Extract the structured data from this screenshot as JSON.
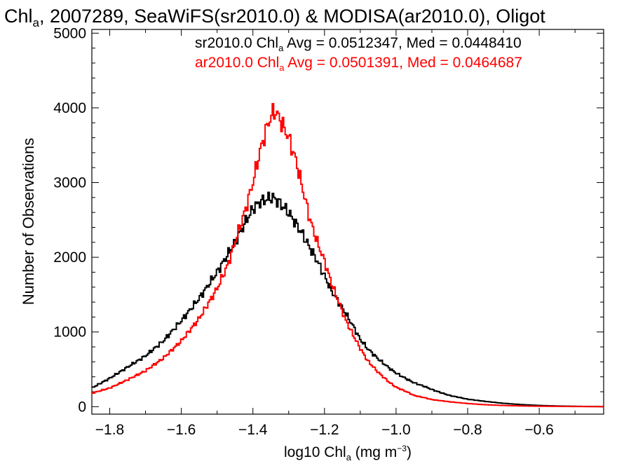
{
  "chart_data": {
    "type": "line",
    "title": {
      "prefix": "Chl",
      "sub": "a",
      "rest": ", 2007289, SeaWiFS(sr2010.0) & MODISA(ar2010.0), Oligot"
    },
    "xlabel": {
      "prefix": "log10 Chl",
      "sub": "a",
      "mid": " (mg m",
      "sup": "−3",
      "end": ")"
    },
    "ylabel": "Number of Observations",
    "xlim": [
      -1.85,
      -0.42
    ],
    "ylim": [
      -100,
      5050
    ],
    "x_ticks": [
      -1.8,
      -1.6,
      -1.4,
      -1.2,
      -1.0,
      -0.8,
      -0.6
    ],
    "x_tick_labels": [
      "−1.8",
      "−1.6",
      "−1.4",
      "−1.2",
      "−1.0",
      "−0.8",
      "−0.6"
    ],
    "y_ticks": [
      0,
      1000,
      2000,
      3000,
      4000,
      5000
    ],
    "y_tick_labels": [
      "0",
      "1000",
      "2000",
      "3000",
      "4000",
      "5000"
    ],
    "grid": false,
    "legend_position": "top-right",
    "series": [
      {
        "name": "sr2010.0",
        "color": "#000000",
        "legend": {
          "prefix": "sr2010.0 Chl",
          "sub": "a",
          "rest": " Avg = 0.0512347, Med = 0.0448410"
        },
        "x": [
          -1.85,
          -1.8,
          -1.75,
          -1.7,
          -1.65,
          -1.6,
          -1.55,
          -1.5,
          -1.45,
          -1.42,
          -1.4,
          -1.38,
          -1.36,
          -1.35,
          -1.34,
          -1.32,
          -1.3,
          -1.28,
          -1.26,
          -1.24,
          -1.22,
          -1.2,
          -1.18,
          -1.15,
          -1.12,
          -1.1,
          -1.08,
          -1.05,
          -1.02,
          -1.0,
          -0.97,
          -0.95,
          -0.92,
          -0.9,
          -0.87,
          -0.85,
          -0.82,
          -0.8,
          -0.75,
          -0.7,
          -0.65,
          -0.6,
          -0.55,
          -0.5,
          -0.45,
          -0.42
        ],
        "y": [
          250,
          380,
          530,
          680,
          880,
          1150,
          1450,
          1800,
          2200,
          2480,
          2650,
          2740,
          2780,
          2800,
          2790,
          2700,
          2600,
          2450,
          2300,
          2120,
          1950,
          1750,
          1550,
          1320,
          1080,
          900,
          780,
          640,
          520,
          450,
          370,
          320,
          270,
          230,
          180,
          150,
          120,
          100,
          70,
          45,
          28,
          16,
          9,
          5,
          2,
          1
        ]
      },
      {
        "name": "ar2010.0",
        "color": "#ff0000",
        "legend": {
          "prefix": "ar2010.0 Chl",
          "sub": "a",
          "rest": " Avg = 0.0501391, Med = 0.0464687"
        },
        "x": [
          -1.85,
          -1.8,
          -1.75,
          -1.7,
          -1.65,
          -1.6,
          -1.55,
          -1.5,
          -1.47,
          -1.45,
          -1.42,
          -1.4,
          -1.38,
          -1.36,
          -1.35,
          -1.34,
          -1.33,
          -1.32,
          -1.3,
          -1.28,
          -1.26,
          -1.24,
          -1.22,
          -1.2,
          -1.18,
          -1.16,
          -1.14,
          -1.12,
          -1.1,
          -1.08,
          -1.05,
          -1.02,
          -1.0,
          -0.97,
          -0.95,
          -0.92,
          -0.9,
          -0.85,
          -0.8,
          -0.75,
          -0.7,
          -0.65,
          -0.6,
          -0.55,
          -0.5,
          -0.45,
          -0.42
        ],
        "y": [
          180,
          250,
          360,
          480,
          650,
          880,
          1180,
          1580,
          1900,
          2200,
          2650,
          3000,
          3420,
          3750,
          3880,
          3960,
          3900,
          3800,
          3600,
          3300,
          2900,
          2500,
          2200,
          1950,
          1650,
          1400,
          1150,
          960,
          780,
          620,
          460,
          330,
          260,
          200,
          150,
          120,
          95,
          65,
          42,
          26,
          16,
          10,
          6,
          4,
          2,
          1,
          0
        ]
      }
    ]
  }
}
